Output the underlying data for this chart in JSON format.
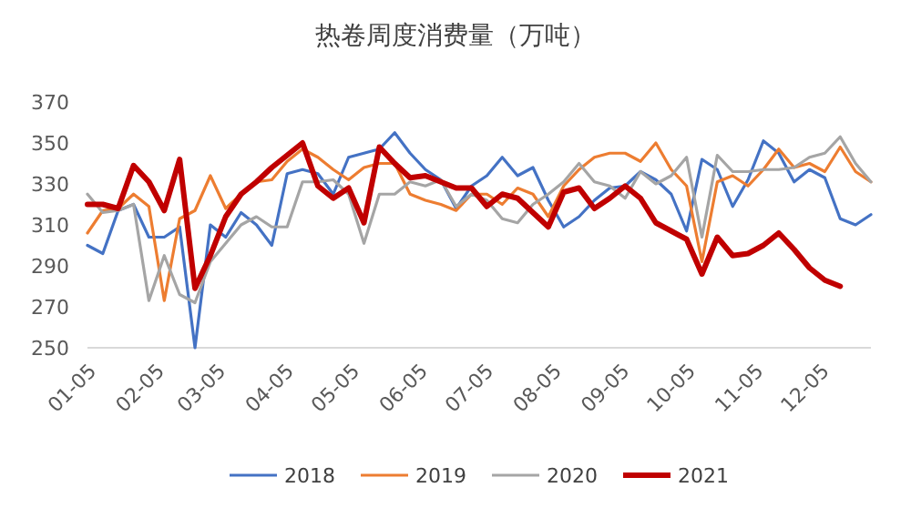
{
  "chart_data": {
    "type": "line",
    "title": "热卷周度消费量（万吨）",
    "x": [
      "--01-05",
      "--01-12",
      "--01-19",
      "--01-26",
      "--02-02",
      "--02-09",
      "--02-16",
      "--02-23",
      "--03-02",
      "--03-09",
      "--03-16",
      "--03-23",
      "--03-30",
      "--04-06",
      "--04-13",
      "--04-20",
      "--04-27",
      "--05-04",
      "--05-11",
      "--05-18",
      "--05-25",
      "--06-01",
      "--06-08",
      "--06-15",
      "--06-22",
      "--06-29",
      "--07-06",
      "--07-13",
      "--07-20",
      "--07-27",
      "--08-03",
      "--08-10",
      "--08-17",
      "--08-24",
      "--08-31",
      "--09-07",
      "--09-14",
      "--09-21",
      "--09-28",
      "--10-05",
      "--10-12",
      "--10-19",
      "--10-26",
      "--11-02",
      "--11-09",
      "--11-16",
      "--11-23",
      "--11-30",
      "--12-07",
      "--12-14",
      "--12-21",
      "--12-28"
    ],
    "series": [
      {
        "name": "2018",
        "color": "#4472c4",
        "values": [
          300,
          296,
          317,
          320,
          304,
          304,
          309,
          250,
          310,
          304,
          316,
          310,
          300,
          335,
          337,
          335,
          325,
          343,
          345,
          347,
          355,
          345,
          337,
          332,
          318,
          329,
          334,
          343,
          334,
          338,
          322,
          309,
          314,
          322,
          328,
          329,
          336,
          332,
          325,
          307,
          342,
          337,
          319,
          332,
          351,
          345,
          331,
          337,
          333,
          313,
          310,
          315
        ]
      },
      {
        "name": "2019",
        "color": "#ed7d31",
        "values": [
          306,
          317,
          318,
          325,
          319,
          273,
          313,
          317,
          334,
          318,
          325,
          331,
          332,
          341,
          347,
          343,
          337,
          332,
          338,
          340,
          340,
          325,
          322,
          320,
          317,
          325,
          325,
          320,
          328,
          325,
          314,
          329,
          337,
          343,
          345,
          345,
          341,
          350,
          337,
          329,
          292,
          331,
          334,
          329,
          337,
          347,
          338,
          340,
          336,
          348,
          336,
          331
        ]
      },
      {
        "name": "2020",
        "color": "#a5a5a5",
        "values": [
          325,
          316,
          317,
          320,
          273,
          295,
          276,
          272,
          292,
          301,
          310,
          314,
          309,
          309,
          331,
          331,
          332,
          325,
          301,
          325,
          325,
          331,
          329,
          332,
          319,
          325,
          322,
          313,
          311,
          320,
          325,
          331,
          340,
          331,
          329,
          323,
          336,
          330,
          334,
          343,
          304,
          344,
          336,
          336,
          337,
          337,
          338,
          343,
          345,
          353,
          340,
          331
        ]
      },
      {
        "name": "2021",
        "color": "#c00000",
        "values": [
          320,
          320,
          318,
          339,
          331,
          317,
          342,
          279,
          295,
          314,
          325,
          331,
          338,
          344,
          350,
          329,
          323,
          328,
          311,
          348,
          340,
          333,
          334,
          331,
          328,
          328,
          319,
          325,
          323,
          316,
          309,
          326,
          328,
          318,
          323,
          329,
          323,
          311,
          307,
          303,
          286,
          304,
          295,
          296,
          300,
          306,
          298,
          289,
          283,
          280,
          null,
          null
        ]
      }
    ],
    "xlim": [
      "--01-05",
      "--12-28"
    ],
    "xticks": [
      {
        "value": "--01-05",
        "label": "01-05"
      },
      {
        "value": "--02-05",
        "label": "02-05"
      },
      {
        "value": "--03-05",
        "label": "03-05"
      },
      {
        "value": "--04-05",
        "label": "04-05"
      },
      {
        "value": "--05-05",
        "label": "05-05"
      },
      {
        "value": "--06-05",
        "label": "06-05"
      },
      {
        "value": "--07-05",
        "label": "07-05"
      },
      {
        "value": "--08-05",
        "label": "08-05"
      },
      {
        "value": "--09-05",
        "label": "09-05"
      },
      {
        "value": "--10-05",
        "label": "10-05"
      },
      {
        "value": "--11-05",
        "label": "11-05"
      },
      {
        "value": "--12-05",
        "label": "12-05"
      }
    ],
    "ylim": [
      250,
      370
    ],
    "yticks": [
      250,
      270,
      290,
      310,
      330,
      350,
      370
    ],
    "grid": false,
    "legend": "bottom",
    "marker": "none",
    "line_style": "solid"
  }
}
